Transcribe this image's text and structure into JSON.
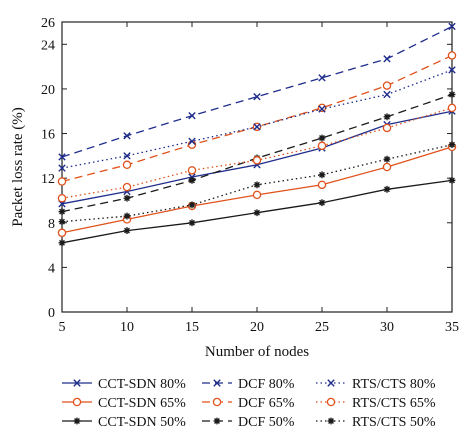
{
  "chart_data": {
    "type": "line",
    "xlabel": "Number of nodes",
    "ylabel": "Packet loss rate (%)",
    "xlim": [
      5,
      35
    ],
    "ylim": [
      0,
      26
    ],
    "xticks": [
      5,
      10,
      15,
      20,
      25,
      30,
      35
    ],
    "yticks": [
      0,
      4,
      8,
      12,
      16,
      20,
      24
    ],
    "ytick_labels": [
      "0",
      "4",
      "8",
      "12",
      "16",
      "20",
      "24"
    ],
    "ytop_label": "26",
    "grid": false,
    "legend_position": "bottom",
    "x": [
      5,
      10,
      15,
      20,
      25,
      30,
      35
    ],
    "series": [
      {
        "name": "CCT-SDN 80%",
        "values": [
          9.7,
          10.8,
          12.1,
          13.2,
          14.7,
          16.8,
          18.0
        ],
        "color": "#1f2d8c",
        "dash": "solid",
        "marker": "x"
      },
      {
        "name": "CCT-SDN 65%",
        "values": [
          7.1,
          8.3,
          9.5,
          10.5,
          11.4,
          13.0,
          14.8
        ],
        "color": "#e0521b",
        "dash": "solid",
        "marker": "circle"
      },
      {
        "name": "CCT-SDN 50%",
        "values": [
          6.2,
          7.3,
          8.0,
          8.9,
          9.8,
          11.0,
          11.8
        ],
        "color": "#1a1a1a",
        "dash": "solid",
        "marker": "star"
      },
      {
        "name": "DCF 80%",
        "values": [
          13.9,
          15.8,
          17.6,
          19.3,
          21.0,
          22.7,
          25.6
        ],
        "color": "#1f2d8c",
        "dash": "dashed",
        "marker": "x"
      },
      {
        "name": "DCF 65%",
        "values": [
          11.7,
          13.2,
          15.0,
          16.6,
          18.3,
          20.3,
          23.0
        ],
        "color": "#e0521b",
        "dash": "dashed",
        "marker": "circle"
      },
      {
        "name": "DCF 50%",
        "values": [
          9.0,
          10.2,
          11.8,
          13.8,
          15.6,
          17.5,
          19.5
        ],
        "color": "#1a1a1a",
        "dash": "dashed",
        "marker": "star"
      },
      {
        "name": "RTS/CTS 80%",
        "values": [
          12.9,
          14.0,
          15.3,
          16.6,
          18.2,
          19.5,
          21.7
        ],
        "color": "#1f2d8c",
        "dash": "dotted",
        "marker": "x"
      },
      {
        "name": "RTS/CTS 65%",
        "values": [
          10.2,
          11.2,
          12.7,
          13.6,
          14.9,
          16.5,
          18.3
        ],
        "color": "#e0521b",
        "dash": "dotted",
        "marker": "circle"
      },
      {
        "name": "RTS/CTS 50%",
        "values": [
          8.1,
          8.6,
          9.6,
          11.4,
          12.3,
          13.7,
          15.0
        ],
        "color": "#1a1a1a",
        "dash": "dotted",
        "marker": "star"
      }
    ]
  }
}
